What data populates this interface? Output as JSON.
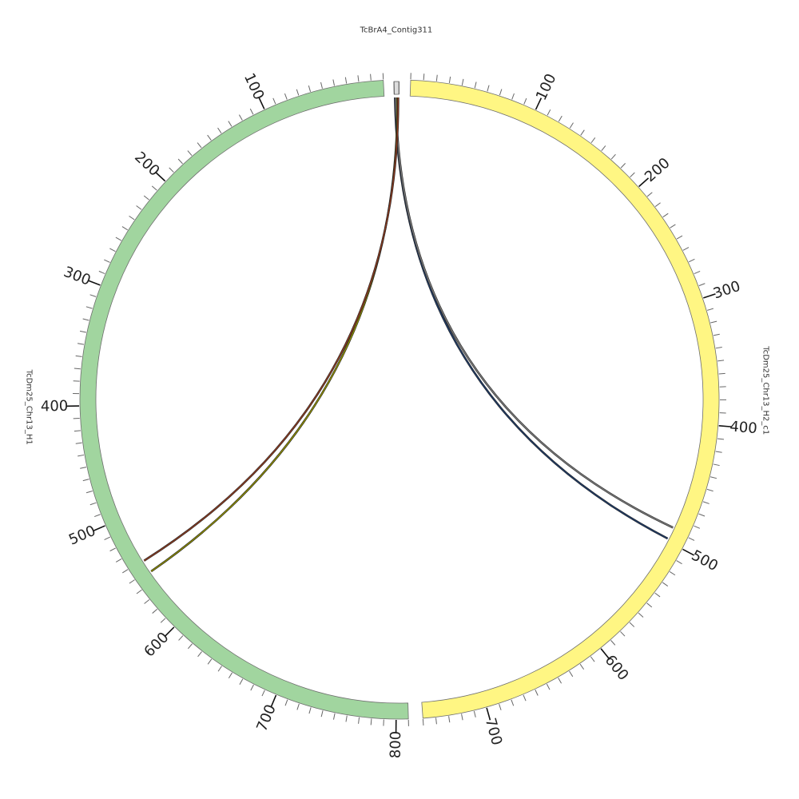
{
  "chart_data": {
    "type": "circos",
    "segments": [
      {
        "id": "h2",
        "name": "TcDm25_Chr13_H2_c1",
        "length": 750,
        "color": "#fff683",
        "direction": "clockwise",
        "major_ticks": [
          100,
          200,
          300,
          400,
          500,
          600,
          700
        ],
        "major_labels": [
          "100",
          "200",
          "300",
          "400",
          "500",
          "600",
          "700"
        ]
      },
      {
        "id": "h1",
        "name": "TcDm25_Chr13_H1",
        "length": 810,
        "color": "#a1d59f",
        "direction": "counterclockwise",
        "major_ticks": [
          100,
          200,
          300,
          400,
          500,
          600,
          700,
          800
        ],
        "major_labels": [
          "100",
          "200",
          "300",
          "400",
          "500",
          "600",
          "700",
          "800"
        ]
      },
      {
        "id": "contig",
        "name": "TcBrA4_Contig311",
        "length": 3,
        "color": "#dddddd"
      }
    ],
    "tick_step": 10,
    "links": [
      {
        "from": "contig",
        "from_pos": 0.5,
        "to": "h2",
        "to_pos": 498,
        "color": "#1e3a66"
      },
      {
        "from": "contig",
        "from_pos": 1.0,
        "to": "h2",
        "to_pos": 488,
        "color": "#7a7a7a"
      },
      {
        "from": "contig",
        "from_pos": 2.0,
        "to": "h1",
        "to_pos": 552,
        "color": "#8f8f00"
      },
      {
        "from": "contig",
        "from_pos": 2.5,
        "to": "h1",
        "to_pos": 541,
        "color": "#8a3a20"
      }
    ]
  }
}
